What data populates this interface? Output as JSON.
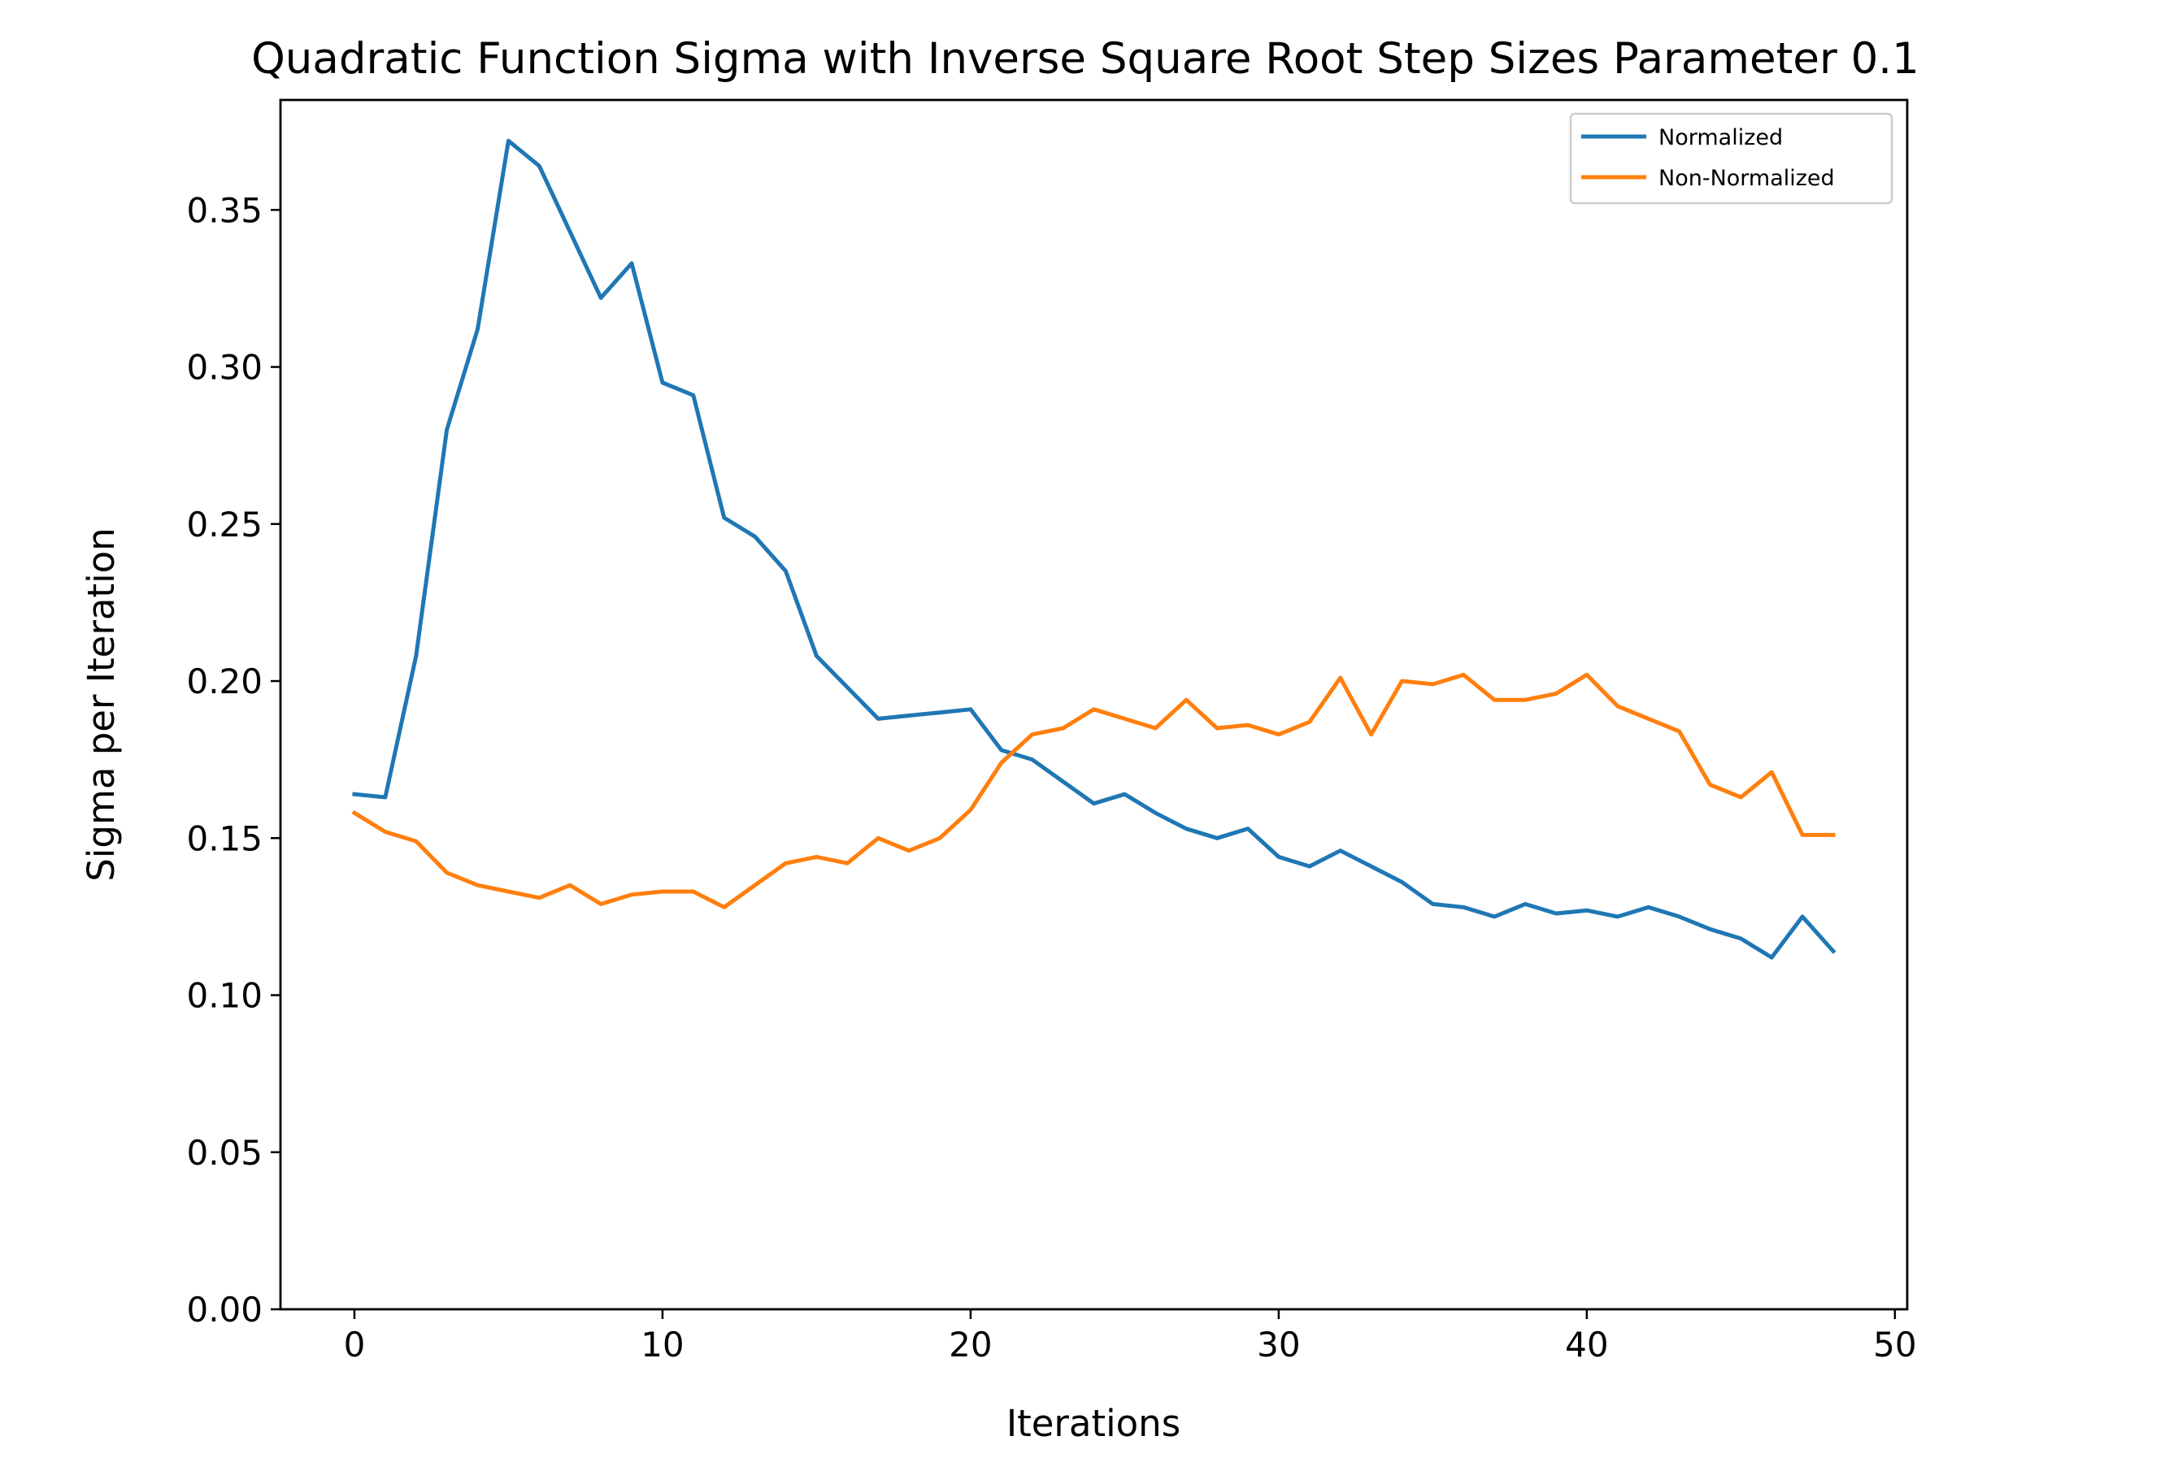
{
  "chart_data": {
    "type": "line",
    "title": "Quadratic Function Sigma with Inverse Square Root Step Sizes Parameter 0.1",
    "xlabel": "Iterations",
    "ylabel": "Sigma per Iteration",
    "xlim": [
      -2.4,
      50.4
    ],
    "ylim": [
      0.0,
      0.385
    ],
    "xticks": [
      0,
      10,
      20,
      30,
      40,
      50
    ],
    "xtick_labels": [
      "0",
      "10",
      "20",
      "30",
      "40",
      "50"
    ],
    "yticks": [
      0.0,
      0.05,
      0.1,
      0.15,
      0.2,
      0.25,
      0.3,
      0.35
    ],
    "ytick_labels": [
      "0.00",
      "0.05",
      "0.10",
      "0.15",
      "0.20",
      "0.25",
      "0.30",
      "0.35"
    ],
    "grid": false,
    "legend_position": "top-right",
    "x": [
      0,
      1,
      2,
      3,
      4,
      5,
      6,
      7,
      8,
      9,
      10,
      11,
      12,
      13,
      14,
      15,
      16,
      17,
      18,
      19,
      20,
      21,
      22,
      23,
      24,
      25,
      26,
      27,
      28,
      29,
      30,
      31,
      32,
      33,
      34,
      35,
      36,
      37,
      38,
      39,
      40,
      41,
      42,
      43,
      44,
      45,
      46,
      47,
      48
    ],
    "series": [
      {
        "name": "Normalized",
        "color": "#1f77b4",
        "values": [
          0.164,
          0.163,
          0.208,
          0.28,
          0.312,
          0.372,
          0.364,
          0.343,
          0.322,
          0.333,
          0.295,
          0.291,
          0.252,
          0.246,
          0.235,
          0.208,
          0.198,
          0.188,
          0.189,
          0.19,
          0.191,
          0.178,
          0.175,
          0.168,
          0.161,
          0.164,
          0.158,
          0.153,
          0.15,
          0.153,
          0.144,
          0.141,
          0.146,
          0.141,
          0.136,
          0.129,
          0.128,
          0.125,
          0.129,
          0.126,
          0.127,
          0.125,
          0.128,
          0.125,
          0.121,
          0.118,
          0.112,
          0.125,
          0.114
        ]
      },
      {
        "name": "Non-Normalized",
        "color": "#ff7f0e",
        "values": [
          0.158,
          0.152,
          0.149,
          0.139,
          0.135,
          0.133,
          0.131,
          0.135,
          0.129,
          0.132,
          0.133,
          0.133,
          0.128,
          0.135,
          0.142,
          0.144,
          0.142,
          0.15,
          0.146,
          0.15,
          0.159,
          0.174,
          0.183,
          0.185,
          0.191,
          0.188,
          0.185,
          0.194,
          0.185,
          0.186,
          0.183,
          0.187,
          0.201,
          0.183,
          0.2,
          0.199,
          0.202,
          0.194,
          0.194,
          0.196,
          0.202,
          0.192,
          0.188,
          0.184,
          0.167,
          0.163,
          0.171,
          0.151,
          0.151
        ]
      }
    ]
  }
}
